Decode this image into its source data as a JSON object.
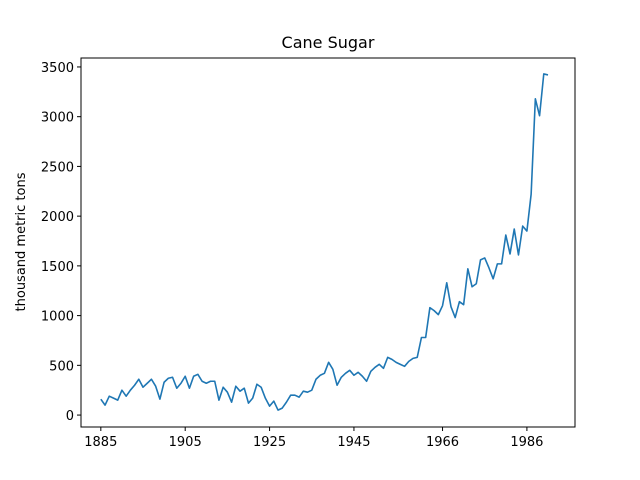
{
  "chart_data": {
    "type": "line",
    "title": "Cane Sugar",
    "y_label": "thousand metric tons",
    "x": [
      1885,
      1886,
      1887,
      1888,
      1889,
      1890,
      1891,
      1892,
      1893,
      1894,
      1895,
      1896,
      1897,
      1898,
      1899,
      1900,
      1901,
      1902,
      1903,
      1904,
      1905,
      1906,
      1907,
      1908,
      1909,
      1910,
      1911,
      1912,
      1913,
      1914,
      1915,
      1916,
      1917,
      1918,
      1919,
      1920,
      1921,
      1922,
      1923,
      1924,
      1925,
      1926,
      1927,
      1928,
      1929,
      1930,
      1931,
      1932,
      1933,
      1934,
      1935,
      1936,
      1937,
      1938,
      1939,
      1940,
      1941,
      1942,
      1943,
      1944,
      1945,
      1946,
      1947,
      1948,
      1949,
      1950,
      1951,
      1952,
      1953,
      1954,
      1955,
      1956,
      1957,
      1958,
      1959,
      1960,
      1961,
      1962,
      1963,
      1964,
      1965,
      1966,
      1967,
      1968,
      1969,
      1970,
      1971,
      1972,
      1973,
      1974,
      1975,
      1976,
      1977,
      1978,
      1979,
      1980,
      1981,
      1982,
      1983,
      1984,
      1985,
      1986,
      1987,
      1988,
      1989,
      1990,
      1991
    ],
    "series": [
      {
        "name": "Cane Sugar",
        "color": "#1f77b4",
        "values": [
          160,
          100,
          190,
          170,
          150,
          250,
          190,
          250,
          300,
          360,
          280,
          320,
          360,
          290,
          160,
          330,
          370,
          380,
          270,
          320,
          390,
          270,
          390,
          410,
          340,
          320,
          340,
          340,
          150,
          280,
          230,
          130,
          290,
          240,
          270,
          120,
          170,
          310,
          280,
          170,
          90,
          140,
          50,
          70,
          130,
          200,
          200,
          180,
          240,
          230,
          250,
          360,
          400,
          420,
          530,
          460,
          300,
          380,
          420,
          450,
          400,
          430,
          390,
          340,
          440,
          480,
          510,
          470,
          580,
          560,
          530,
          510,
          490,
          540,
          570,
          580,
          780,
          780,
          1080,
          1050,
          1010,
          1100,
          1330,
          1090,
          980,
          1140,
          1110,
          1470,
          1290,
          1320,
          1560,
          1580,
          1480,
          1370,
          1520,
          1520,
          1810,
          1620,
          1870,
          1610,
          1900,
          1850,
          2220,
          3180,
          3010,
          3430,
          3420
        ]
      }
    ],
    "xlim": [
      1880.3,
      1997.4
    ],
    "xticks": [
      1885,
      1905,
      1925,
      1945,
      1966,
      1986
    ],
    "ylim": [
      -120,
      3590
    ],
    "yticks": [
      0,
      500,
      1000,
      1500,
      2000,
      2500,
      3000,
      3500
    ]
  }
}
